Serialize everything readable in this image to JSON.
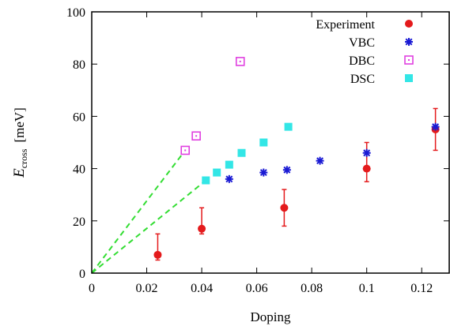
{
  "chart_data": {
    "type": "scatter",
    "xlabel": "Doping",
    "ylabel_main": "E",
    "ylabel_sub": "cross",
    "ylabel_unit": "[meV]",
    "xlim": [
      0,
      0.13
    ],
    "ylim": [
      0,
      100
    ],
    "x_ticks": [
      0,
      0.02,
      0.04,
      0.06,
      0.08,
      0.1,
      0.12
    ],
    "x_tick_labels": [
      "0",
      "0.02",
      "0.04",
      "0.06",
      "0.08",
      "0.1",
      "0.12"
    ],
    "y_ticks": [
      0,
      20,
      40,
      60,
      80,
      100
    ],
    "y_tick_labels": [
      "0",
      "20",
      "40",
      "60",
      "80",
      "100"
    ],
    "grid": false,
    "legend_position": "top-right",
    "series": [
      {
        "name": "Experiment",
        "marker": "filled-circle",
        "color": "#e41a1c",
        "points": [
          {
            "x": 0.024,
            "y": 7,
            "ylow": 5,
            "yhigh": 15
          },
          {
            "x": 0.04,
            "y": 17,
            "ylow": 15,
            "yhigh": 25
          },
          {
            "x": 0.07,
            "y": 25,
            "ylow": 18,
            "yhigh": 32
          },
          {
            "x": 0.1,
            "y": 40,
            "ylow": 35,
            "yhigh": 50
          },
          {
            "x": 0.125,
            "y": 55,
            "ylow": 47,
            "yhigh": 63
          }
        ]
      },
      {
        "name": "VBC",
        "marker": "star",
        "color": "#1a1ad4",
        "points": [
          {
            "x": 0.05,
            "y": 36
          },
          {
            "x": 0.0625,
            "y": 38.5
          },
          {
            "x": 0.071,
            "y": 39.5
          },
          {
            "x": 0.083,
            "y": 43
          },
          {
            "x": 0.1,
            "y": 46
          },
          {
            "x": 0.125,
            "y": 56
          }
        ]
      },
      {
        "name": "DBC",
        "marker": "open-square-dot",
        "color": "#e040e0",
        "points": [
          {
            "x": 0.034,
            "y": 47
          },
          {
            "x": 0.038,
            "y": 52.5
          },
          {
            "x": 0.054,
            "y": 81
          }
        ]
      },
      {
        "name": "DSC",
        "marker": "filled-square",
        "color": "#33e6e6",
        "points": [
          {
            "x": 0.0415,
            "y": 35.5
          },
          {
            "x": 0.0455,
            "y": 38.5
          },
          {
            "x": 0.05,
            "y": 41.5
          },
          {
            "x": 0.0545,
            "y": 46
          },
          {
            "x": 0.0625,
            "y": 50
          },
          {
            "x": 0.0715,
            "y": 56
          }
        ]
      }
    ],
    "guide_lines": [
      {
        "color": "#33dd33",
        "x": [
          0,
          0.034
        ],
        "y": [
          0,
          47
        ]
      },
      {
        "color": "#33dd33",
        "x": [
          0,
          0.0415
        ],
        "y": [
          0,
          35.5
        ]
      }
    ]
  }
}
